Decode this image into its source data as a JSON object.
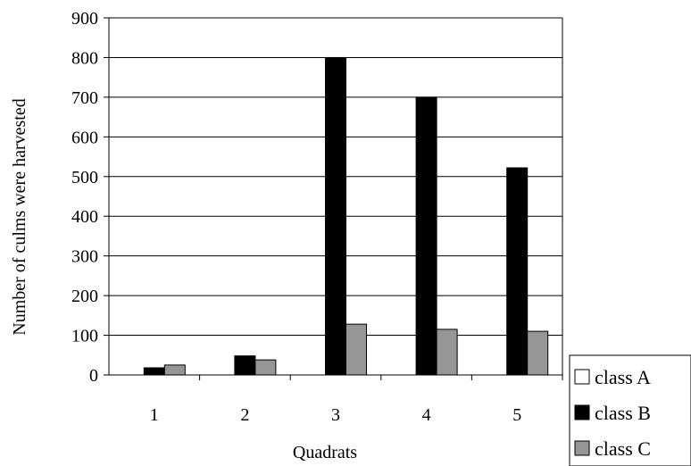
{
  "chart_data": {
    "type": "bar",
    "xlabel": "Quadrats",
    "ylabel": "Number of culms were harvested",
    "ylim": [
      0,
      900
    ],
    "yticks": [
      0,
      100,
      200,
      300,
      400,
      500,
      600,
      700,
      800,
      900
    ],
    "categories": [
      "1",
      "2",
      "3",
      "4",
      "5"
    ],
    "series": [
      {
        "name": "class A",
        "color": "#ffffff",
        "values": [
          0,
          0,
          0,
          0,
          0
        ]
      },
      {
        "name": "class B",
        "color": "#000000",
        "values": [
          18,
          48,
          800,
          700,
          522
        ]
      },
      {
        "name": "class C",
        "color": "#969696",
        "values": [
          25,
          38,
          128,
          115,
          110
        ]
      }
    ],
    "grid": true,
    "legend_position": "bottom-right"
  }
}
